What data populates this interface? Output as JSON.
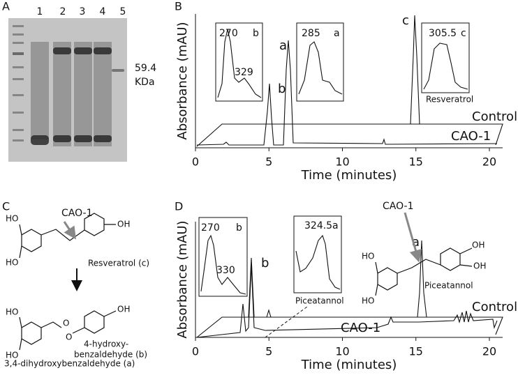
{
  "panels": {
    "A": {
      "label": "A",
      "lanes": [
        "1",
        "2",
        "3",
        "4",
        "5"
      ],
      "marker": [
        "59.4",
        "KDa"
      ]
    },
    "B": {
      "label": "B",
      "y_label": "Absorbance (mAU)",
      "x_label": "Time (minutes)",
      "xticks": [
        0,
        5,
        10,
        15,
        20
      ],
      "peaks": [
        "b",
        "a",
        "c"
      ],
      "traces": [
        "Control",
        "CAO-1"
      ],
      "insets": [
        [
          "270",
          "b",
          "329"
        ],
        [
          "285",
          "a"
        ],
        [
          "305.5",
          "c",
          "Resveratrol"
        ]
      ]
    },
    "C": {
      "label": "C",
      "enzyme": "CAO-1",
      "substrate": "Resveratrol (c)",
      "substrate_atoms": [
        "HO",
        "HO",
        "OH"
      ],
      "product_a_atoms": [
        "HO",
        "HO",
        "O"
      ],
      "product_a": "3,4-dihydroxybenzaldehyde (a)",
      "product_b_atoms": [
        "OH",
        "O"
      ],
      "product_b": [
        "4-hydroxy-",
        "benzaldehyde (b)"
      ]
    },
    "D": {
      "label": "D",
      "y_label": "Absorbance (mAU)",
      "x_label": "Time (minutes)",
      "xticks": [
        0,
        5,
        10,
        15,
        20
      ],
      "peaks": [
        "a",
        "b"
      ],
      "traces": [
        "Control",
        "CAO-1"
      ],
      "insets": [
        [
          "270",
          "b",
          "330"
        ],
        [
          "324.5",
          "a",
          "Piceatannol"
        ]
      ],
      "structure": {
        "enzyme": "CAO-1",
        "atoms": [
          "HO",
          "HO",
          "OH",
          "OH"
        ],
        "name": "Piceatannol"
      }
    }
  }
}
